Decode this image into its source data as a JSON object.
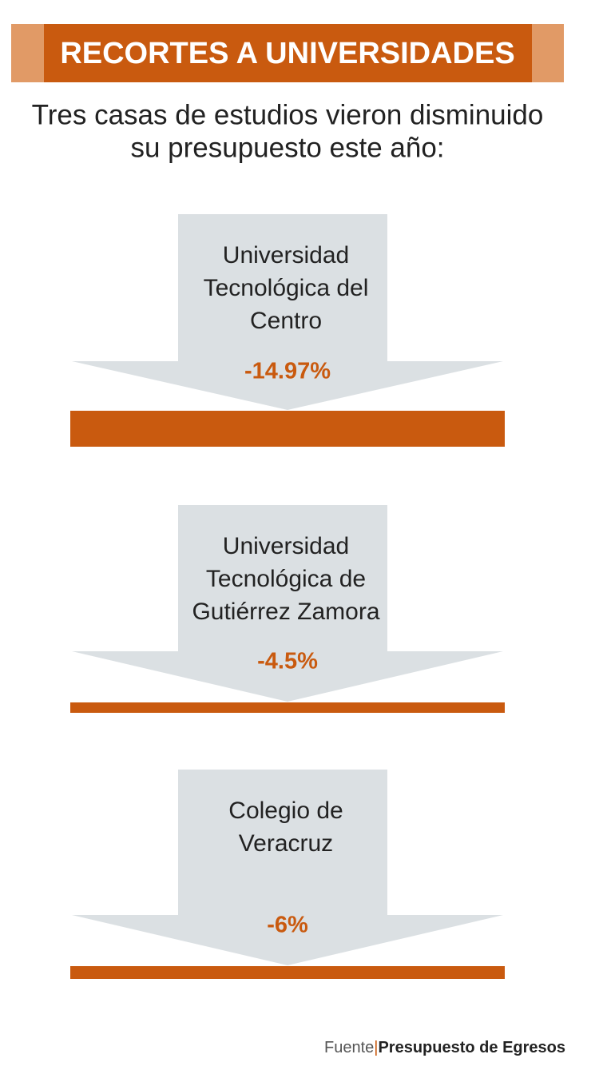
{
  "header": {
    "title": "RECORTES A UNIVERSIDADES",
    "subtitle": [
      "Tres casas de estudios vieron disminuido",
      "su presupuesto este año:"
    ]
  },
  "items": [
    {
      "name": [
        "Universidad",
        "Tecnológica del",
        "Centro"
      ],
      "change": "-14.97%"
    },
    {
      "name": [
        "Universidad",
        "Tecnológica de",
        "Gutiérrez Zamora"
      ],
      "change": "-4.5%"
    },
    {
      "name": [
        "Colegio de",
        "Veracruz"
      ],
      "change": "-6%"
    }
  ],
  "footer": {
    "label": "Fuente",
    "source": "Presupuesto de Egresos"
  }
}
